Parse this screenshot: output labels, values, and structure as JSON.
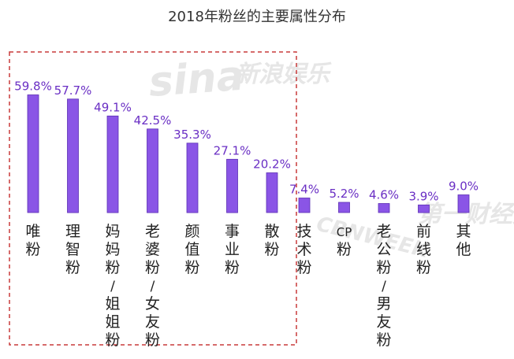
{
  "chart_data": {
    "type": "bar",
    "title": "2018年粉丝的主要属性分布",
    "categories": [
      "唯粉",
      "理智粉",
      "妈妈粉/姐姐粉",
      "老婆粉/女友粉",
      "颜值粉",
      "事业粉",
      "散粉",
      "技术粉",
      "CP粉",
      "老公粉/男友粉",
      "前线粉",
      "其他"
    ],
    "values": [
      59.8,
      57.7,
      49.1,
      42.5,
      35.3,
      27.1,
      20.2,
      7.4,
      5.2,
      4.6,
      3.9,
      9.0
    ],
    "value_labels": [
      "59.8%",
      "57.7%",
      "49.1%",
      "42.5%",
      "35.3%",
      "27.1%",
      "20.2%",
      "7.4%",
      "5.2%",
      "4.6%",
      "3.9%",
      "9.0%"
    ],
    "xlabel": "",
    "ylabel": "",
    "ylim": [
      0,
      60
    ],
    "grid": false,
    "legend": "none",
    "highlight_box_categories": [
      "唯粉",
      "理智粉",
      "妈妈粉/姐姐粉",
      "老婆粉/女友粉",
      "颜值粉",
      "事业粉",
      "散粉"
    ]
  },
  "watermarks": {
    "sina_logo": "sina",
    "sina_text": "新浪娱乐",
    "cbnweek_logo": "CBNWEEK",
    "cbnweek_text": "第一财经数据"
  },
  "colors": {
    "bar": "#8a55e6",
    "bar_edge": "#5b2fb5",
    "value_label": "#6a2fc4",
    "highlight_box": "#c93a3a",
    "watermark": "#e6e6e6"
  }
}
